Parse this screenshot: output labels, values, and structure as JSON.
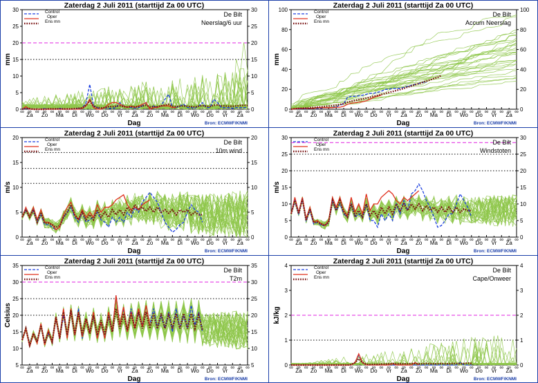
{
  "header": {
    "title": "Zaterdag   2 Juli      2011   (starttijd   Za 00 UTC)",
    "location": "De Bilt",
    "source": "Bron:  ECMWF/KNMI",
    "xlabel": "Dag",
    "days": [
      "Za",
      "Zo",
      "Ma",
      "Di",
      "Wo",
      "Do",
      "Vr",
      "Za",
      "Zo",
      "Ma",
      "Di",
      "Wo",
      "Do",
      "Vr",
      "Za"
    ]
  },
  "legend": {
    "control": "Control",
    "oper": "Oper",
    "ensmn": "Ens mn"
  },
  "colors": {
    "control": "#1a3ee0",
    "oper": "#e0301e",
    "ensmn": "#7a1414",
    "members": "#8ec64a",
    "threshold_magenta": "#e020e0",
    "threshold_black": "#000000",
    "frame_border": "#1a3ea8"
  },
  "chart_data": [
    {
      "type": "line",
      "subtitle": "Neerslag/6 uur",
      "ylabel": "mm",
      "ylim": [
        0,
        30
      ],
      "yticks": [
        0,
        5,
        10,
        15,
        20,
        25,
        30
      ],
      "thresholds": [
        {
          "value": 20,
          "color": "magenta"
        },
        {
          "value": 15,
          "color": "black"
        }
      ],
      "series": [
        {
          "name": "Control",
          "values": [
            0,
            0.3,
            0,
            0,
            0,
            0,
            0.2,
            0,
            0,
            0,
            0.3,
            0,
            0,
            0,
            0,
            0.2,
            0.3,
            2,
            7.5,
            1,
            0.5,
            0,
            0.5,
            0.3,
            0.3,
            0.5,
            2,
            1,
            0.5,
            0.5,
            0.3,
            0.5,
            1,
            2,
            0,
            1,
            0.5,
            1,
            3,
            4.5,
            0.5,
            0.5,
            1,
            1.5,
            0.5,
            0.5,
            0.3,
            1,
            2,
            0.5,
            0.5,
            3,
            2,
            0.5,
            0.5,
            0.5,
            0.3,
            0.5,
            0.5,
            0.5,
            0.5
          ]
        },
        {
          "name": "Oper",
          "values": [
            0,
            0.8,
            0,
            0,
            0,
            0,
            0,
            0,
            0,
            0,
            0,
            0,
            0,
            0,
            0,
            0,
            0.3,
            1,
            3,
            0.5,
            0,
            0,
            0.5,
            1.5,
            2,
            2,
            1.5,
            1,
            0.5,
            1,
            0.5,
            1,
            1.5,
            2,
            0,
            0.5,
            0.5,
            1,
            1,
            1,
            0.5,
            0.5
          ]
        },
        {
          "name": "Ens mn",
          "values": [
            0,
            0.2,
            0.2,
            0,
            0,
            0,
            0,
            0.1,
            0.1,
            0.1,
            0.1,
            0.1,
            0.1,
            0.1,
            0.2,
            0.3,
            0.4,
            1.2,
            2.5,
            1,
            0.5,
            0.4,
            0.5,
            0.8,
            0.8,
            0.9,
            1,
            0.8,
            0.7,
            0.8,
            0.7,
            0.8,
            1,
            1.2,
            0.7,
            0.8,
            0.8,
            1,
            1.3,
            1.5,
            0.9,
            0.8,
            0.9,
            1,
            0.9,
            0.8,
            0.7,
            0.9,
            1.1,
            0.9,
            0.8,
            1.2,
            1.3,
            1,
            1,
            0.9,
            0.9,
            1,
            1.1,
            1.2,
            1.1
          ]
        }
      ]
    },
    {
      "type": "line",
      "subtitle": "Accum Neerslag",
      "ylabel": "mm",
      "ylim": [
        0,
        100
      ],
      "yticks": [
        0,
        20,
        40,
        60,
        80,
        100
      ],
      "thresholds": [],
      "series": [
        {
          "name": "Control",
          "values": [
            0,
            0.5,
            0.5,
            0.5,
            0.5,
            0.8,
            1,
            1,
            1,
            1.5,
            1.5,
            2,
            2.5,
            4,
            5.5,
            12,
            13,
            13,
            13.5,
            14,
            15,
            16,
            16,
            17,
            18,
            20,
            20,
            21,
            21,
            21,
            22,
            23,
            24,
            25,
            26,
            27,
            27
          ]
        },
        {
          "name": "Oper",
          "values": [
            0,
            0.5,
            1,
            1,
            1,
            1,
            1,
            1.5,
            1.5,
            1.5,
            1.5,
            1.5,
            2,
            2,
            3,
            5,
            6,
            6.5,
            7,
            7.5,
            8.5,
            10,
            12,
            13,
            14
          ]
        },
        {
          "name": "Ens mn",
          "values": [
            0,
            0.5,
            0.8,
            1,
            1.2,
            1.5,
            1.8,
            2.1,
            2.4,
            2.8,
            3.2,
            3.6,
            4.1,
            4.8,
            5.6,
            7,
            8,
            8.8,
            9.6,
            10.4,
            11.2,
            12.1,
            13,
            13.9,
            14.8,
            15.8,
            16.8,
            17.8,
            18.8,
            19.8,
            21,
            22.2,
            23.4,
            24.6,
            25.8,
            27,
            28.2,
            29.5,
            30.8,
            32,
            34
          ]
        }
      ]
    },
    {
      "type": "line",
      "subtitle": "10m wind",
      "ylabel": "m/s",
      "ylim": [
        0,
        20
      ],
      "yticks": [
        0,
        5,
        10,
        15,
        20
      ],
      "thresholds": [
        {
          "value": 17,
          "color": "black"
        },
        {
          "value": 13.8,
          "color": "black"
        },
        {
          "value": 10.8,
          "color": "black"
        }
      ],
      "series": [
        {
          "name": "Control",
          "values": [
            4,
            5.5,
            4,
            5.5,
            3,
            4.5,
            2.5,
            2.5,
            2,
            1.5,
            2,
            4,
            5,
            6,
            4,
            3,
            5,
            3,
            3.5,
            4,
            5,
            3.5,
            3,
            2,
            4,
            3,
            4,
            3,
            5,
            4,
            6,
            5,
            7,
            8,
            9,
            8,
            7,
            5,
            3,
            2,
            1,
            1.5,
            2.5,
            3,
            5,
            6.5,
            5.5,
            5,
            3
          ]
        },
        {
          "name": "Oper",
          "values": [
            4,
            6,
            4,
            6,
            3.5,
            5.5,
            3,
            3,
            2.5,
            1.5,
            2,
            4.5,
            6,
            7,
            4.5,
            3.5,
            5.5,
            4,
            5,
            4,
            6.5,
            5,
            6,
            6,
            6.5,
            7.5,
            8,
            8.5,
            6.5,
            5.5,
            6,
            5.5,
            6.5,
            7,
            7.5
          ]
        },
        {
          "name": "Ens mn",
          "values": [
            4,
            5.5,
            4,
            5.5,
            3,
            5,
            2.8,
            2.8,
            2.5,
            2,
            2.3,
            4,
            5,
            6.5,
            4.5,
            3.5,
            5,
            3.5,
            4.5,
            3.5,
            5.5,
            4,
            5,
            4,
            5.5,
            4.5,
            5.5,
            4.5,
            6,
            5,
            6.5,
            5.5,
            6,
            5.2,
            6,
            5,
            6,
            5,
            5.5,
            4.8,
            5.5,
            4.5,
            5.5,
            5,
            5.5,
            4.5,
            5,
            4.5,
            4.5
          ]
        }
      ]
    },
    {
      "type": "line",
      "subtitle": "Windstoten",
      "ylabel": "m/s",
      "ylim": [
        0,
        30
      ],
      "yticks": [
        0,
        5,
        10,
        15,
        20,
        25,
        30
      ],
      "thresholds": [
        {
          "value": 28.5,
          "color": "magenta"
        },
        {
          "value": 25,
          "color": "black"
        },
        {
          "value": 20,
          "color": "black"
        }
      ],
      "series": [
        {
          "name": "Control",
          "values": [
            7,
            11,
            7,
            11.5,
            5,
            8,
            4,
            4.5,
            3.5,
            3.5,
            4.5,
            11,
            8,
            10,
            7,
            6,
            10,
            6,
            7,
            6,
            10,
            5,
            5,
            3,
            7,
            5,
            7,
            5,
            10,
            7,
            11,
            8,
            13,
            14,
            16,
            14,
            11,
            9,
            6,
            3,
            3.5,
            5,
            7,
            7,
            10,
            13,
            11,
            9,
            6
          ]
        },
        {
          "name": "Oper",
          "values": [
            7,
            12,
            7.5,
            12,
            5.5,
            9,
            4.5,
            5,
            4,
            3.5,
            5,
            12,
            9,
            12,
            8,
            6.5,
            12,
            7.5,
            10,
            7,
            13,
            8,
            10,
            10,
            12,
            13,
            14,
            13,
            11,
            10,
            12,
            11,
            12,
            13,
            14
          ]
        },
        {
          "name": "Ens mn",
          "values": [
            7,
            11,
            7,
            11.5,
            5,
            8.5,
            4.5,
            4.5,
            4,
            3.5,
            4.5,
            11,
            8,
            11,
            7.5,
            6,
            10,
            6.5,
            8,
            6,
            10,
            6.5,
            8,
            6,
            9,
            7,
            9,
            7,
            10,
            8,
            10,
            8,
            10,
            8.5,
            10,
            8,
            9.5,
            8,
            9,
            7.5,
            9,
            7.5,
            9,
            7.5,
            9,
            7.5,
            8.5,
            8,
            8
          ]
        }
      ]
    },
    {
      "type": "line",
      "subtitle": "T2m",
      "ylabel": "Celsius",
      "ylim": [
        5,
        35
      ],
      "yticks": [
        5,
        10,
        15,
        20,
        25,
        30,
        35
      ],
      "thresholds": [
        {
          "value": 30,
          "color": "magenta"
        },
        {
          "value": 25,
          "color": "black"
        },
        {
          "value": 20,
          "color": "black"
        }
      ],
      "series": [
        {
          "name": "Control",
          "values": [
            12.5,
            16,
            11,
            14.5,
            12,
            17,
            11.5,
            14.5,
            12,
            19,
            13,
            20,
            13.5,
            21.5,
            14,
            22,
            13,
            19,
            15,
            20,
            13.5,
            17.5,
            13,
            20,
            15,
            26,
            17,
            22,
            15,
            22,
            16,
            21,
            17,
            23,
            17,
            22,
            16,
            20,
            16,
            21,
            15,
            22,
            16,
            20,
            16,
            23,
            17,
            21,
            15
          ]
        },
        {
          "name": "Oper",
          "values": [
            12.5,
            16,
            10.5,
            14.5,
            11.5,
            17.5,
            11,
            15.5,
            11.5,
            19.5,
            13,
            22,
            13,
            22,
            14,
            21,
            13.5,
            19,
            14.5,
            21,
            13,
            18,
            13,
            21,
            15,
            26,
            17,
            22.5,
            15,
            21,
            16,
            22,
            16.5,
            23,
            17
          ]
        },
        {
          "name": "Ens mn",
          "values": [
            12.5,
            16,
            11,
            14.5,
            12,
            17,
            11.5,
            15,
            12,
            19.5,
            13,
            21,
            14,
            21.5,
            14,
            21,
            14,
            19,
            14.5,
            20,
            14,
            18.5,
            14,
            20,
            15,
            22,
            16,
            20.5,
            15.5,
            20.5,
            16,
            21,
            16,
            21,
            16,
            20.5,
            16,
            20.5,
            16,
            20.5,
            16,
            20.5,
            16,
            20.5,
            16,
            20.5,
            16,
            20,
            15.5
          ]
        }
      ]
    },
    {
      "type": "line",
      "subtitle": "Cape/Onweer",
      "ylabel": "kJ/kg",
      "ylim": [
        0,
        4
      ],
      "yticks": [
        0,
        1,
        2,
        3,
        4
      ],
      "thresholds": [
        {
          "value": 2,
          "color": "magenta"
        },
        {
          "value": 1,
          "color": "black"
        }
      ],
      "series": [
        {
          "name": "Control",
          "values": [
            0,
            0,
            0,
            0,
            0,
            0,
            0,
            0,
            0,
            0,
            0,
            0,
            0,
            0,
            0,
            0,
            0,
            0.1,
            0.4,
            0.1,
            0,
            0,
            0,
            0,
            0,
            0,
            0,
            0,
            0,
            0,
            0,
            0,
            0,
            0,
            0,
            0,
            0,
            0,
            0,
            0,
            0,
            0,
            0,
            0,
            0,
            0.1,
            0,
            0,
            0
          ]
        },
        {
          "name": "Oper",
          "values": [
            0,
            0,
            0,
            0,
            0,
            0,
            0,
            0,
            0,
            0,
            0,
            0,
            0,
            0,
            0,
            0,
            0,
            0.1,
            0.45,
            0.1,
            0,
            0,
            0,
            0,
            0,
            0,
            0,
            0.05,
            0,
            0,
            0,
            0,
            0,
            0.1,
            0
          ]
        },
        {
          "name": "Ens mn",
          "values": [
            0,
            0,
            0,
            0,
            0,
            0,
            0,
            0,
            0,
            0,
            0,
            0,
            0,
            0,
            0,
            0,
            0.02,
            0.1,
            0.25,
            0.1,
            0.03,
            0.02,
            0.03,
            0.03,
            0.04,
            0.04,
            0.05,
            0.06,
            0.05,
            0.05,
            0.05,
            0.05,
            0.06,
            0.06,
            0.05,
            0.05,
            0.06,
            0.05,
            0.05,
            0.05,
            0.06,
            0.05,
            0.05,
            0.06,
            0.06,
            0.05,
            0.06,
            0.08,
            0.06
          ]
        }
      ]
    }
  ]
}
